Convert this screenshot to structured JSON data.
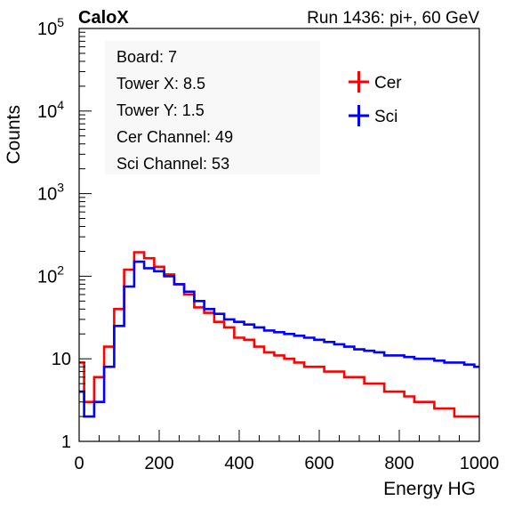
{
  "header": {
    "experiment": "CaloX",
    "run_info": "Run 1436: pi+, 60 GeV"
  },
  "info_box": [
    "Board: 7",
    "Tower X: 8.5",
    "Tower Y: 1.5",
    "Cer Channel: 49",
    "Sci Channel: 53"
  ],
  "colors": {
    "cer": "#ff0000",
    "sci": "#0000ff",
    "info_box_bg": "#f8f8f8"
  },
  "chart_data": {
    "type": "line",
    "title": "",
    "xlabel": "Energy HG",
    "ylabel": "Counts",
    "xlim": [
      0,
      1000
    ],
    "ylim": [
      1,
      100000
    ],
    "yscale": "log",
    "x_ticks": [
      "0",
      "200",
      "400",
      "600",
      "800",
      "1000"
    ],
    "y_ticks": [
      "1",
      "10",
      "10^2",
      "10^3",
      "10^4",
      "10^5"
    ],
    "legend_position": "top-right",
    "x": [
      0,
      25,
      50,
      75,
      100,
      125,
      150,
      175,
      200,
      225,
      250,
      275,
      300,
      325,
      350,
      375,
      400,
      425,
      450,
      475,
      500,
      525,
      550,
      575,
      600,
      625,
      650,
      675,
      700,
      725,
      750,
      775,
      800,
      825,
      850,
      875,
      900,
      925,
      950,
      975,
      1000
    ],
    "series": [
      {
        "name": "Cer",
        "values": [
          9,
          3,
          6,
          14,
          40,
          120,
          195,
          165,
          130,
          105,
          80,
          60,
          42,
          36,
          28,
          24,
          18,
          17,
          14,
          12,
          11,
          10,
          9,
          8,
          8,
          7,
          7,
          6,
          6,
          5,
          5,
          4,
          4,
          3.5,
          3,
          3,
          2.5,
          2.5,
          2,
          2,
          2
        ]
      },
      {
        "name": "Sci",
        "values": [
          4,
          2,
          3,
          8,
          25,
          75,
          150,
          125,
          115,
          100,
          80,
          65,
          50,
          40,
          35,
          30,
          28,
          26,
          24,
          22,
          21,
          20,
          19,
          18,
          17,
          16,
          15,
          14,
          13,
          12.5,
          12,
          11,
          11,
          10.5,
          10,
          10,
          9.5,
          9,
          9,
          8.5,
          8
        ]
      }
    ]
  }
}
